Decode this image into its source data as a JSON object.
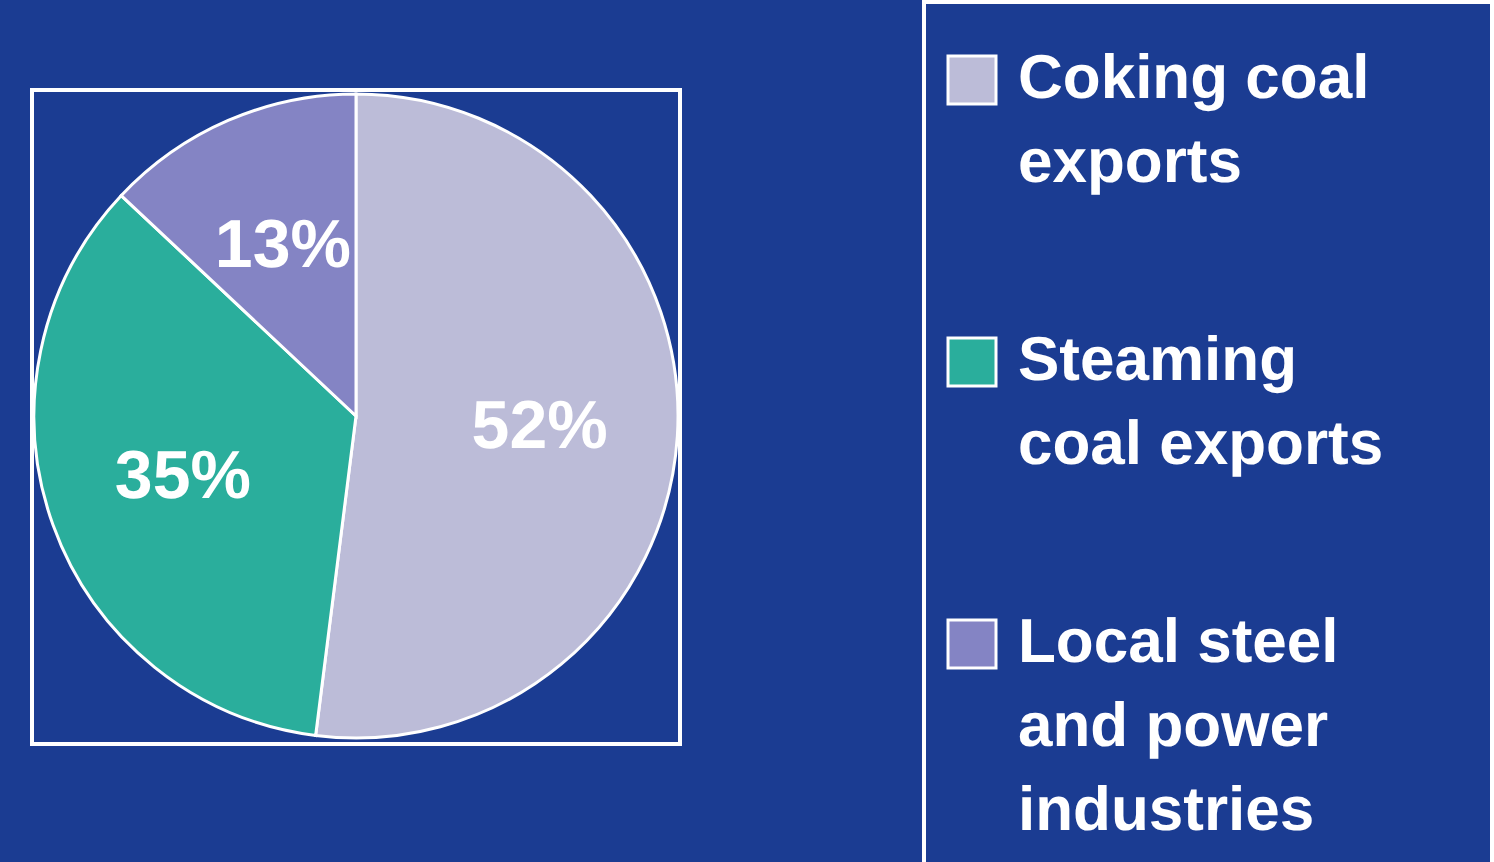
{
  "chart_data": {
    "type": "pie",
    "categories": [
      "Coking coal exports",
      "Steaming coal exports",
      "Local steel and power industries"
    ],
    "values": [
      52,
      35,
      13
    ],
    "colors": [
      "#bcbcd8",
      "#2aae9c",
      "#8484c4"
    ],
    "value_labels": [
      "52%",
      "35%",
      "13%"
    ],
    "legend": "right"
  }
}
